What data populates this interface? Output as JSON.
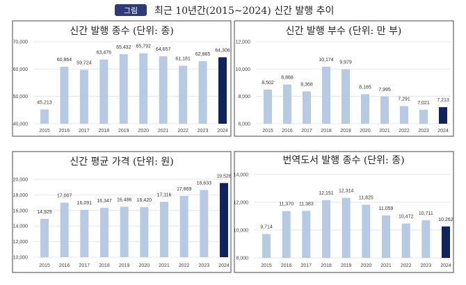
{
  "header": {
    "badge": "그림",
    "title": "최근 10년간(2015~2024) 신간 발행 추이",
    "badge_color": "#2e3a7a"
  },
  "colors": {
    "bar": "#b7cae3",
    "highlight": "#0f235e",
    "grid": "#e6e6e6"
  },
  "chart_data": [
    {
      "type": "bar",
      "title": "신간 발행 종수 (단위: 종)",
      "categories": [
        "2015",
        "2016",
        "2017",
        "2018",
        "2019",
        "2020",
        "2021",
        "2022",
        "2023",
        "2024"
      ],
      "values": [
        45213,
        60864,
        59724,
        63476,
        65432,
        65792,
        64657,
        61181,
        62865,
        64306
      ],
      "labels": [
        "45,213",
        "60,864",
        "59,724",
        "63,476",
        "65,432",
        "65,792",
        "64,657",
        "61,181",
        "62,865",
        "64,306"
      ],
      "ylim": [
        40000,
        70000
      ],
      "yticks": [
        "40,000",
        "50,000",
        "60,000",
        "70,000"
      ],
      "ytick_values": [
        40000,
        50000,
        60000,
        70000
      ],
      "grid": true,
      "highlight": "2024"
    },
    {
      "type": "bar",
      "title": "신간 발행 부수 (단위: 만 부)",
      "categories": [
        "2015",
        "2016",
        "2017",
        "2018",
        "2019",
        "2020",
        "2021",
        "2022",
        "2023",
        "2024"
      ],
      "values": [
        8502,
        8868,
        8368,
        10174,
        9979,
        8165,
        7995,
        7291,
        7021,
        7213
      ],
      "labels": [
        "8,502",
        "8,868",
        "8,368",
        "10,174",
        "9,979",
        "8,165",
        "7,995",
        "7,291",
        "7,021",
        "7,213"
      ],
      "ylim": [
        6000,
        12000
      ],
      "yticks": [
        "6,000",
        "8,000",
        "10,000",
        "12,000"
      ],
      "ytick_values": [
        6000,
        8000,
        10000,
        12000
      ],
      "grid": true,
      "highlight": "2024"
    },
    {
      "type": "bar",
      "title": "신간 평균 가격 (단위: 원)",
      "categories": [
        "2015",
        "2016",
        "2017",
        "2018",
        "2019",
        "2020",
        "2021",
        "2022",
        "2023",
        "2024"
      ],
      "values": [
        14929,
        17007,
        16091,
        16347,
        16486,
        16420,
        17116,
        17869,
        18633,
        19526
      ],
      "labels": [
        "14,929",
        "17,007",
        "16,091",
        "16,347",
        "16,486",
        "16,420",
        "17,116",
        "17,869",
        "18,633",
        "19,526"
      ],
      "ylim": [
        10000,
        20000
      ],
      "yticks": [
        "10,000",
        "12,000",
        "14,000",
        "16,000",
        "18,000",
        "20,000"
      ],
      "ytick_values": [
        10000,
        12000,
        14000,
        16000,
        18000,
        20000
      ],
      "grid": true,
      "highlight": "2024"
    },
    {
      "type": "bar",
      "title": "번역도서 발행 종수 (단위: 종)",
      "categories": [
        "2015",
        "2016",
        "2017",
        "2018",
        "2019",
        "2020",
        "2021",
        "2022",
        "2023",
        "2024"
      ],
      "values": [
        9714,
        11370,
        11383,
        12151,
        12314,
        11825,
        11059,
        10472,
        10711,
        10262
      ],
      "labels": [
        "9,714",
        "11,370",
        "11,383",
        "12,151",
        "12,314",
        "11,825",
        "11,059",
        "10,472",
        "10,711",
        "10,262"
      ],
      "ylim": [
        8000,
        14000
      ],
      "yticks": [
        "8,000",
        "10,000",
        "12,000",
        "14,000"
      ],
      "ytick_values": [
        8000,
        10000,
        12000,
        14000
      ],
      "grid": true,
      "highlight": "2024"
    }
  ]
}
